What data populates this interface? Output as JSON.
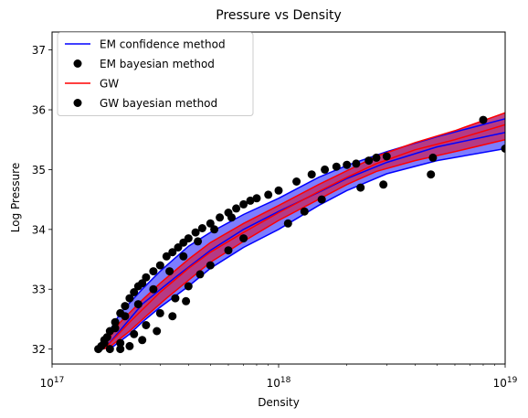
{
  "chart_data": {
    "type": "scatter",
    "title": "Pressure vs Density",
    "xlabel": "Density",
    "ylabel": "Log Pressure",
    "xscale": "log",
    "xlim": [
      1e+17,
      1e+19
    ],
    "ylim": [
      31.75,
      37.3
    ],
    "x_tick_labels": [
      {
        "value": 1e+17,
        "base": "10",
        "exp": "17"
      },
      {
        "value": 1e+18,
        "base": "10",
        "exp": "18"
      },
      {
        "value": 1e+19,
        "base": "10",
        "exp": "19"
      }
    ],
    "y_ticks": [
      32,
      33,
      34,
      35,
      36,
      37
    ],
    "legend_position": "upper-left",
    "legend": [
      {
        "label": "EM confidence method",
        "type": "line",
        "color": "#0000ff"
      },
      {
        "label": "EM bayesian method",
        "type": "marker",
        "color": "#000000"
      },
      {
        "label": "GW",
        "type": "line",
        "color": "#ff0000"
      },
      {
        "label": "GW bayesian method",
        "type": "marker",
        "color": "#000000"
      }
    ],
    "em_band": {
      "color": "#0000ff",
      "fill": "#6f6fff",
      "upper": {
        "x": [
          1.6e+17,
          2e+17,
          2.5e+17,
          3e+17,
          4e+17,
          5e+17,
          7e+17,
          1e+18,
          1.5e+18,
          2e+18,
          3e+18,
          5e+18,
          1e+19
        ],
        "y": [
          32.0,
          32.6,
          33.0,
          33.3,
          33.72,
          33.95,
          34.25,
          34.52,
          34.87,
          35.07,
          35.3,
          35.55,
          35.85
        ]
      },
      "lower": {
        "x": [
          1.8e+17,
          2.2e+17,
          2.5e+17,
          3e+17,
          4e+17,
          5e+17,
          7e+17,
          1e+18,
          1.5e+18,
          2e+18,
          3e+18,
          5e+18,
          1e+19
        ],
        "y": [
          32.0,
          32.25,
          32.45,
          32.7,
          33.05,
          33.35,
          33.7,
          34.0,
          34.4,
          34.65,
          34.93,
          35.15,
          35.35
        ]
      },
      "median": {
        "x": [
          1.7e+17,
          2.5e+17,
          3.5e+17,
          5e+17,
          7e+17,
          1e+18,
          1.5e+18,
          2e+18,
          3e+18,
          5e+18,
          1e+19
        ],
        "y": [
          32.0,
          32.75,
          33.2,
          33.65,
          34.0,
          34.3,
          34.62,
          34.85,
          35.12,
          35.38,
          35.62
        ]
      }
    },
    "gw_band": {
      "color": "#ff0000",
      "fill": "#bb3377",
      "upper": {
        "x": [
          1.65e+17,
          2e+17,
          2.5e+17,
          3e+17,
          4e+17,
          5e+17,
          7e+17,
          1e+18,
          1.5e+18,
          2e+18,
          2.7e+18,
          4e+18,
          6e+18,
          1e+19
        ],
        "y": [
          32.0,
          32.45,
          32.82,
          33.1,
          33.5,
          33.78,
          34.1,
          34.4,
          34.75,
          34.98,
          35.22,
          35.45,
          35.65,
          35.95
        ]
      },
      "lower": {
        "x": [
          1.75e+17,
          2.2e+17,
          2.6e+17,
          3.2e+17,
          4e+17,
          5e+17,
          7e+17,
          1e+18,
          1.5e+18,
          2e+18,
          2.7e+18,
          4e+18,
          6e+18,
          1e+19
        ],
        "y": [
          32.0,
          32.3,
          32.55,
          32.85,
          33.15,
          33.45,
          33.8,
          34.15,
          34.5,
          34.75,
          34.97,
          35.15,
          35.3,
          35.5
        ]
      },
      "median": {
        "x": [
          1.7e+17,
          2.2e+17,
          3e+17,
          4e+17,
          5e+17,
          7e+17,
          1e+18,
          1.5e+18,
          2e+18,
          2.7e+18,
          4e+18,
          6e+18,
          1e+19
        ],
        "y": [
          32.0,
          32.45,
          32.95,
          33.35,
          33.62,
          33.95,
          34.28,
          34.63,
          34.87,
          35.1,
          35.33,
          35.5,
          35.75
        ]
      }
    },
    "scatter_points": {
      "color": "#000000",
      "x": [
        1.6e+17,
        1.65e+17,
        1.7e+17,
        1.75e+17,
        1.8e+17,
        1.9e+17,
        2e+17,
        2.1e+17,
        2.2e+17,
        2.3e+17,
        2.4e+17,
        2.5e+17,
        2.6e+17,
        2.8e+17,
        3e+17,
        3.2e+17,
        3.4e+17,
        3.6e+17,
        3.8e+17,
        4e+17,
        4.3e+17,
        4.6e+17,
        5e+17,
        5.5e+17,
        6e+17,
        6.5e+17,
        7e+17,
        7.5e+17,
        8e+17,
        9e+17,
        1e+18,
        1.2e+18,
        1.4e+18,
        1.6e+18,
        1.8e+18,
        2e+18,
        2.2e+18,
        2.5e+18,
        2.7e+18,
        3e+18,
        1.8e+17,
        2e+17,
        2.3e+17,
        2.6e+17,
        3e+17,
        3.5e+17,
        4e+17,
        4.5e+17,
        5e+17,
        6e+17,
        7e+17,
        1.7e+17,
        1.9e+17,
        2.1e+17,
        2.4e+17,
        2.8e+17,
        3.3e+17,
        3.8e+17,
        4.4e+17,
        5.2e+17,
        6.2e+17,
        2.3e+18,
        2.9e+18,
        4.7e+18,
        4.8e+18,
        8e+18,
        1e+19,
        1.55e+18,
        1.3e+18,
        1.1e+18,
        2e+17,
        2.2e+17,
        2.5e+17,
        2.9e+17,
        3.4e+17,
        3.9e+17
      ],
      "y": [
        32.0,
        32.05,
        32.1,
        32.2,
        32.3,
        32.45,
        32.6,
        32.72,
        32.85,
        32.95,
        33.05,
        33.1,
        33.2,
        33.3,
        33.4,
        33.55,
        33.62,
        33.7,
        33.78,
        33.85,
        33.95,
        34.02,
        34.1,
        34.2,
        34.28,
        34.35,
        34.42,
        34.48,
        34.52,
        34.58,
        34.65,
        34.8,
        34.92,
        35.0,
        35.05,
        35.08,
        35.1,
        35.15,
        35.2,
        35.22,
        32.0,
        32.1,
        32.25,
        32.4,
        32.6,
        32.85,
        33.05,
        33.25,
        33.4,
        33.65,
        33.85,
        32.15,
        32.35,
        32.55,
        32.75,
        33.0,
        33.3,
        33.55,
        33.8,
        34.0,
        34.2,
        34.7,
        34.75,
        34.92,
        35.2,
        35.83,
        35.35,
        34.5,
        34.3,
        34.1,
        32.0,
        32.05,
        32.15,
        32.3,
        32.55,
        32.8
      ]
    }
  }
}
